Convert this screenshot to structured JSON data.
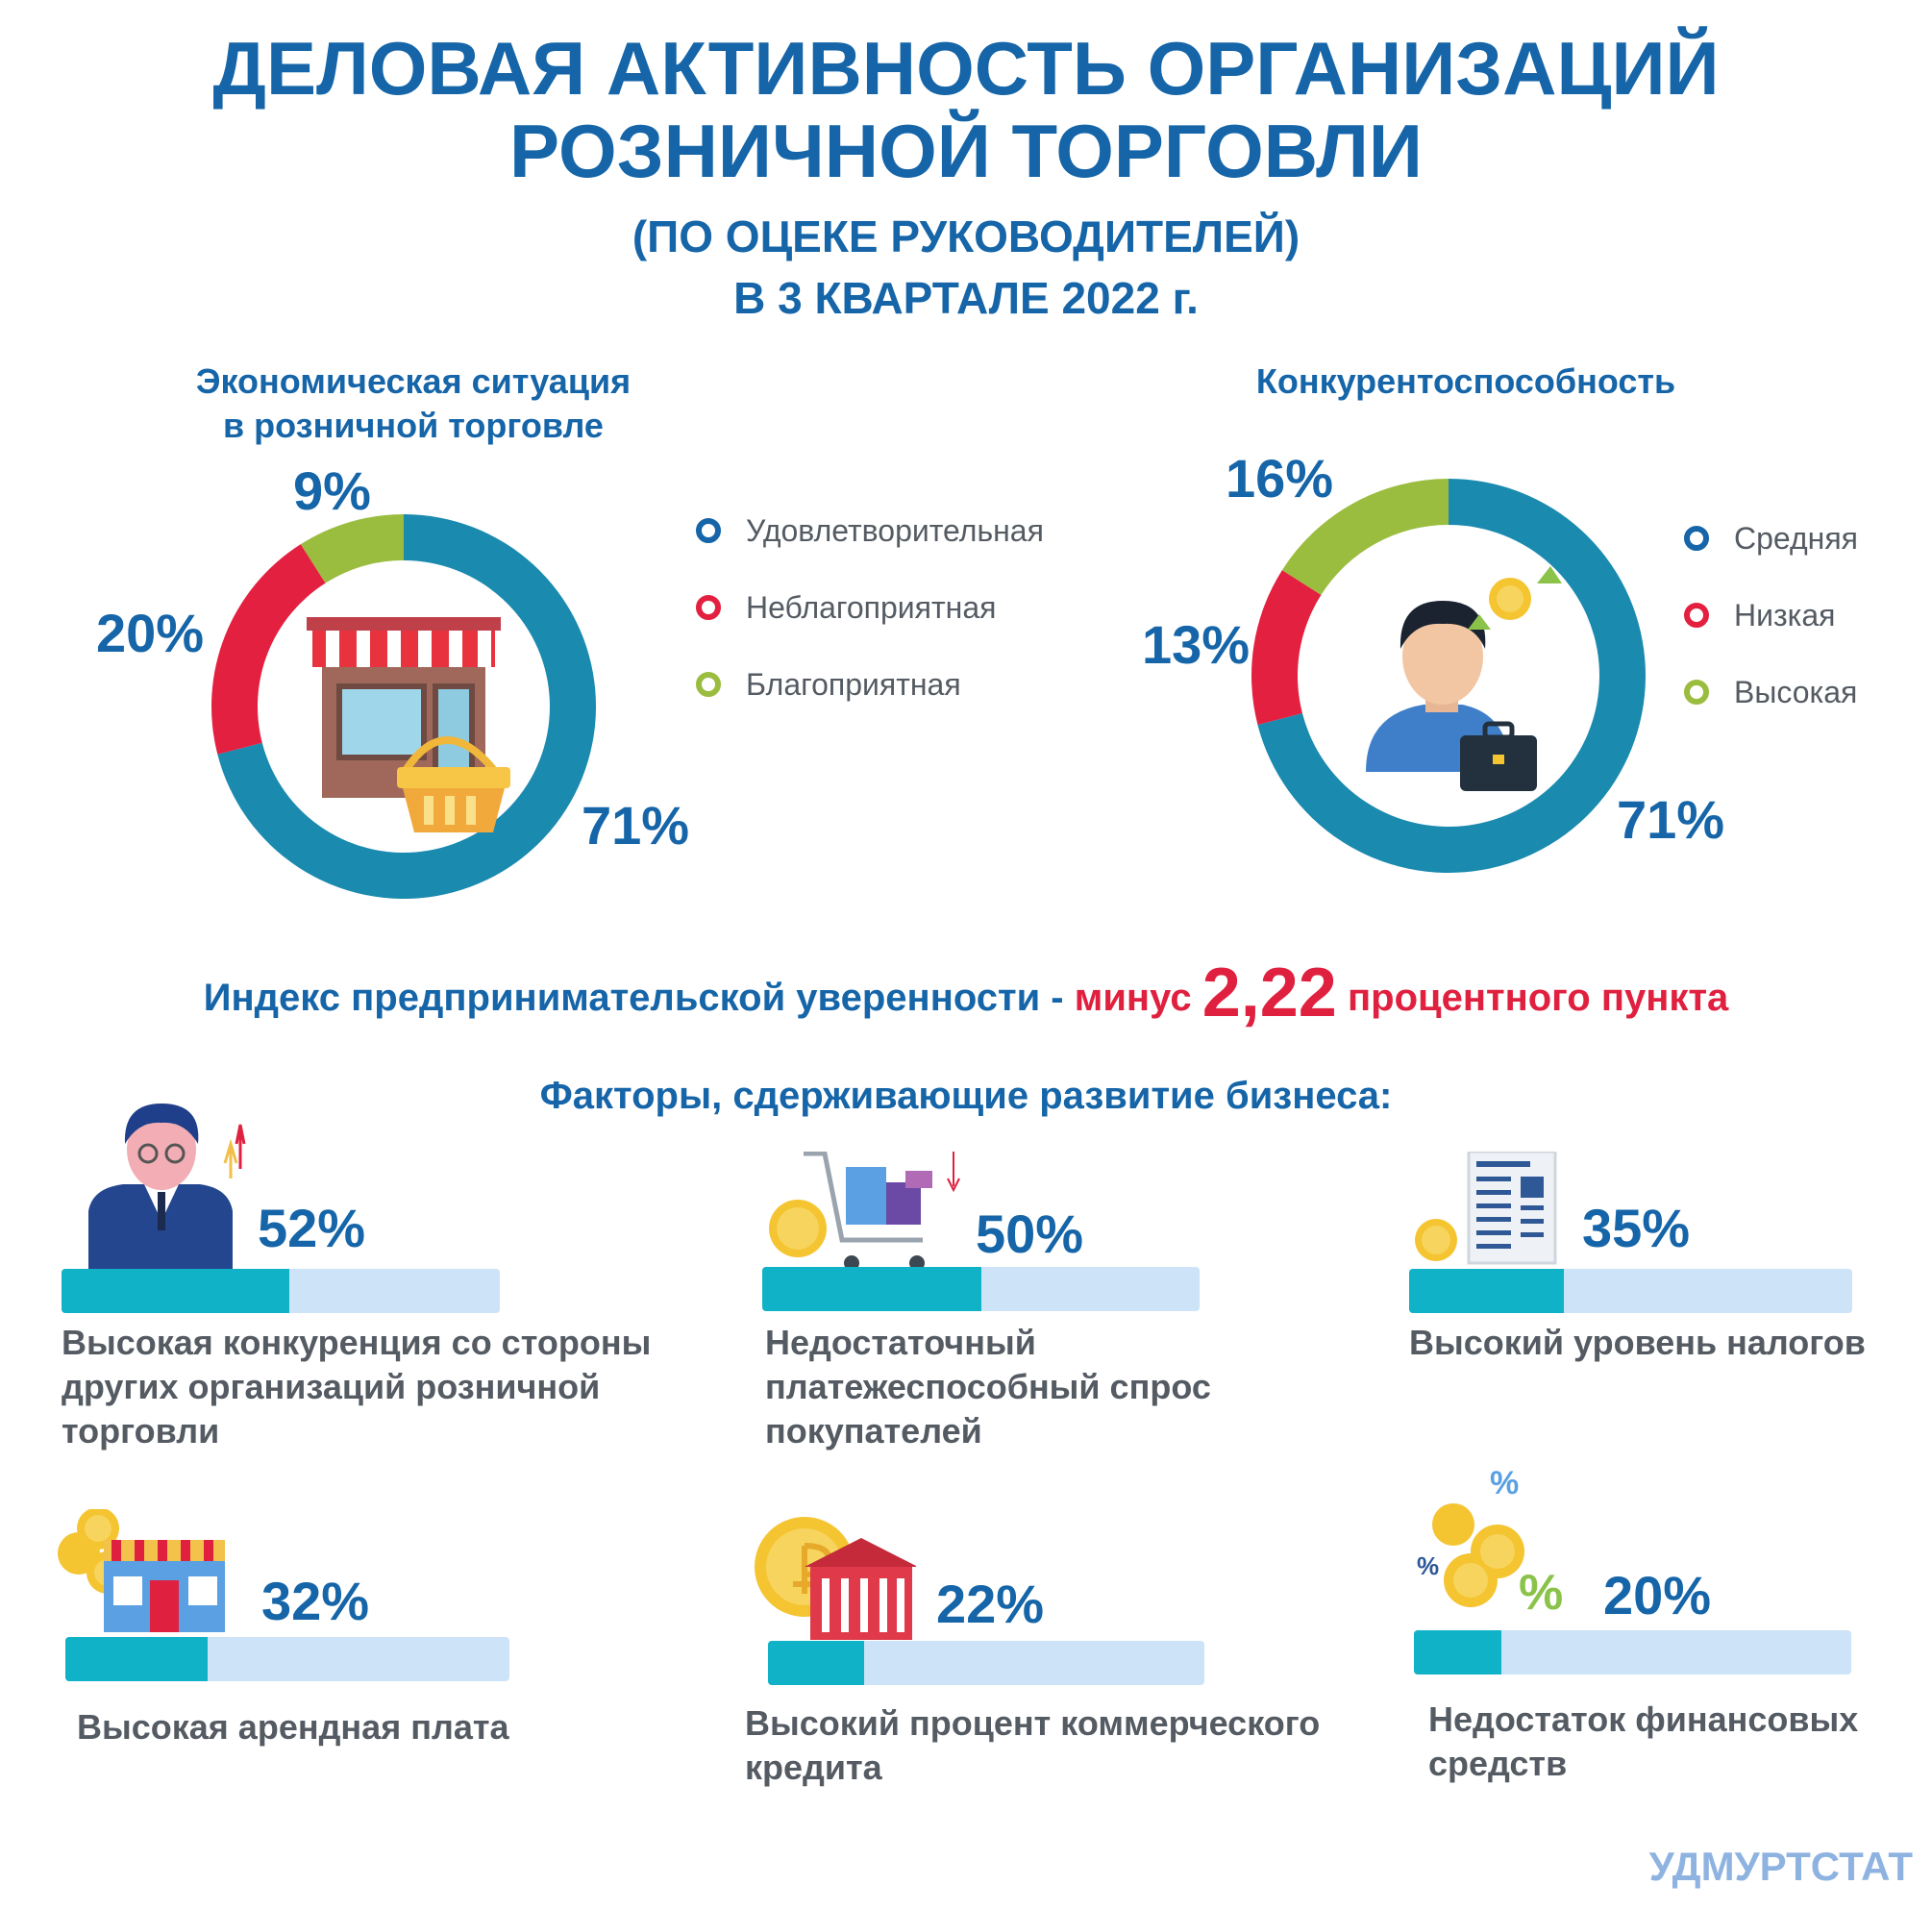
{
  "header": {
    "line1": "ДЕЛОВАЯ АКТИВНОСТЬ ОРГАНИЗАЦИЙ",
    "line2": "РОЗНИЧНОЙ ТОРГОВЛИ",
    "line3": "(ПО ОЦЕКЕ РУКОВОДИТЕЛЕЙ)",
    "line4": "В 3 КВАРТАЛЕ 2022 г."
  },
  "chart_data": [
    {
      "type": "pie",
      "variant": "donut",
      "title_line1": "Экономическая ситуация",
      "title_line2": "в розничной торговле",
      "labels": [
        "Удовлетворительная",
        "Неблагоприятная",
        "Благоприятная"
      ],
      "values": [
        71,
        20,
        9
      ],
      "value_labels": [
        "71%",
        "20%",
        "9%"
      ],
      "colors": [
        "#1a8aaf",
        "#e3203f",
        "#9bbd3f"
      ],
      "legend": "right"
    },
    {
      "type": "pie",
      "variant": "donut",
      "title_line1": "Конкурентоспособность",
      "labels": [
        "Средняя",
        "Низкая",
        "Высокая"
      ],
      "values": [
        71,
        13,
        16
      ],
      "value_labels": [
        "71%",
        "13%",
        "16%"
      ],
      "colors": [
        "#1a8aaf",
        "#e3203f",
        "#9bbd3f"
      ],
      "legend": "right"
    },
    {
      "type": "bar",
      "orientation": "horizontal",
      "title": "Факторы, сдерживающие развитие бизнеса:",
      "categories": [
        "Высокая конкуренция со стороны других организаций розничной торговли",
        "Недостаточный платежеспособный спрос покупателей",
        "Высокий уровень налогов",
        "Высокая арендная плата",
        "Высокий процент коммерческого кредита",
        "Недостаток финансовых средств"
      ],
      "values": [
        52,
        50,
        35,
        32,
        22,
        20
      ],
      "value_labels": [
        "52%",
        "50%",
        "35%",
        "32%",
        "22%",
        "20%"
      ],
      "xlim": [
        0,
        100
      ],
      "colors": {
        "fill": "#0fb2c6",
        "track": "#cde3f7"
      }
    }
  ],
  "index": {
    "prefix": "Индекс предпринимательской уверенности - ",
    "minus": "минус",
    "value": "2,22",
    "suffix": "процентного пункта"
  },
  "factors": {
    "items": [
      {
        "label_lines": [
          "Высокая конкуренция со стороны",
          "других организаций розничной",
          "торговли"
        ]
      },
      {
        "label_lines": [
          "Недостаточный",
          "платежеспособный спрос",
          "покупателей"
        ]
      },
      {
        "label_lines": [
          "Высокий уровень налогов"
        ]
      },
      {
        "label_lines": [
          "Высокая арендная плата"
        ]
      },
      {
        "label_lines": [
          "Высокий процент коммерческого",
          "кредита"
        ]
      },
      {
        "label_lines": [
          "Недостаток финансовых",
          "средств"
        ]
      }
    ]
  },
  "icons": [
    "store-basket-icon",
    "businessman-briefcase-icon",
    "manager-icon",
    "shopping-cart-icon",
    "tax-document-icon",
    "rent-shop-icon",
    "bank-building-icon",
    "coins-percent-icon"
  ],
  "footer": "УДМУРТСТАТ"
}
